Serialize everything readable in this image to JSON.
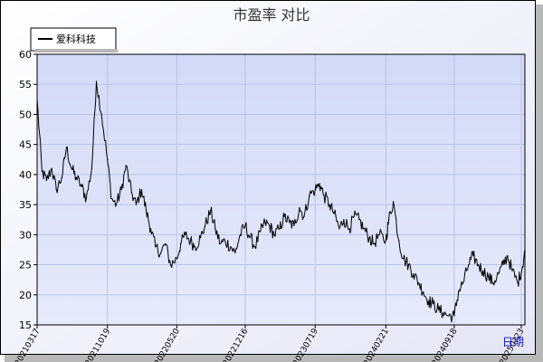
{
  "chart_data": {
    "type": "line",
    "title": "市盈率  对比",
    "xlabel": "日期",
    "ylabel": "",
    "ylim": [
      15,
      60
    ],
    "yticks": [
      15,
      20,
      25,
      30,
      35,
      40,
      45,
      50,
      55,
      60
    ],
    "grid": true,
    "legend": "top-left",
    "x_tick_labels": [
      "20210317",
      "20211019",
      "20220520",
      "20221216",
      "20230719",
      "20240221",
      "20240918",
      "20250?23"
    ],
    "series": [
      {
        "name": "爱科科技",
        "color": "#000000",
        "x": [
          "20210317",
          "20210401",
          "20210415",
          "20210501",
          "20210515",
          "20210601",
          "20210615",
          "20210701",
          "20210715",
          "20210801",
          "20210815",
          "20210901",
          "20210915",
          "20211001",
          "20211019",
          "20211101",
          "20211115",
          "20211201",
          "20211215",
          "20220101",
          "20220115",
          "20220201",
          "20220215",
          "20220301",
          "20220315",
          "20220401",
          "20220415",
          "20220501",
          "20220520",
          "20220601",
          "20220615",
          "20220701",
          "20220715",
          "20220801",
          "20220815",
          "20220901",
          "20220915",
          "20221001",
          "20221015",
          "20221101",
          "20221115",
          "20221201",
          "20221216",
          "20230101",
          "20230115",
          "20230201",
          "20230215",
          "20230301",
          "20230315",
          "20230401",
          "20230415",
          "20230501",
          "20230515",
          "20230601",
          "20230615",
          "20230701",
          "20230719",
          "20230801",
          "20230815",
          "20230901",
          "20230915",
          "20231001",
          "20231015",
          "20231101",
          "20231115",
          "20231201",
          "20231215",
          "20240101",
          "20240115",
          "20240201",
          "20240221",
          "20240301",
          "20240315",
          "20240401",
          "20240415",
          "20240501",
          "20240515",
          "20240601",
          "20240615",
          "20240701",
          "20240715",
          "20240801",
          "20240815",
          "20240901",
          "20240918",
          "20241001",
          "20241015",
          "20241101",
          "20241115",
          "20241201",
          "20241215",
          "20250101",
          "20250115",
          "20250201",
          "20250215",
          "20250301",
          "20250315",
          "20250401",
          "20250415",
          "20250423"
        ],
        "values": [
          52.5,
          40.5,
          39.0,
          41.0,
          37.5,
          39.5,
          44.5,
          41.0,
          39.5,
          38.0,
          36.0,
          41.0,
          55.5,
          50.0,
          42.5,
          36.0,
          35.0,
          37.5,
          41.5,
          37.0,
          35.0,
          37.5,
          34.0,
          31.0,
          28.0,
          27.0,
          28.5,
          25.0,
          26.0,
          28.5,
          30.0,
          29.0,
          28.0,
          29.5,
          31.5,
          34.0,
          31.0,
          28.5,
          29.0,
          28.0,
          27.0,
          30.0,
          31.5,
          29.5,
          28.0,
          30.5,
          32.0,
          31.5,
          30.0,
          31.0,
          33.0,
          32.0,
          31.5,
          34.5,
          33.0,
          36.5,
          37.5,
          38.5,
          36.5,
          35.0,
          33.5,
          31.0,
          32.5,
          31.0,
          33.0,
          32.5,
          31.0,
          29.5,
          28.5,
          30.0,
          29.0,
          32.5,
          35.5,
          29.0,
          26.0,
          25.0,
          23.5,
          22.0,
          20.5,
          19.0,
          18.5,
          17.5,
          17.0,
          16.5,
          16.5,
          20.5,
          22.0,
          25.0,
          26.5,
          25.0,
          24.0,
          23.0,
          22.0,
          23.5,
          25.0,
          26.5,
          24.0,
          22.0,
          24.5,
          27.5
        ]
      }
    ]
  }
}
